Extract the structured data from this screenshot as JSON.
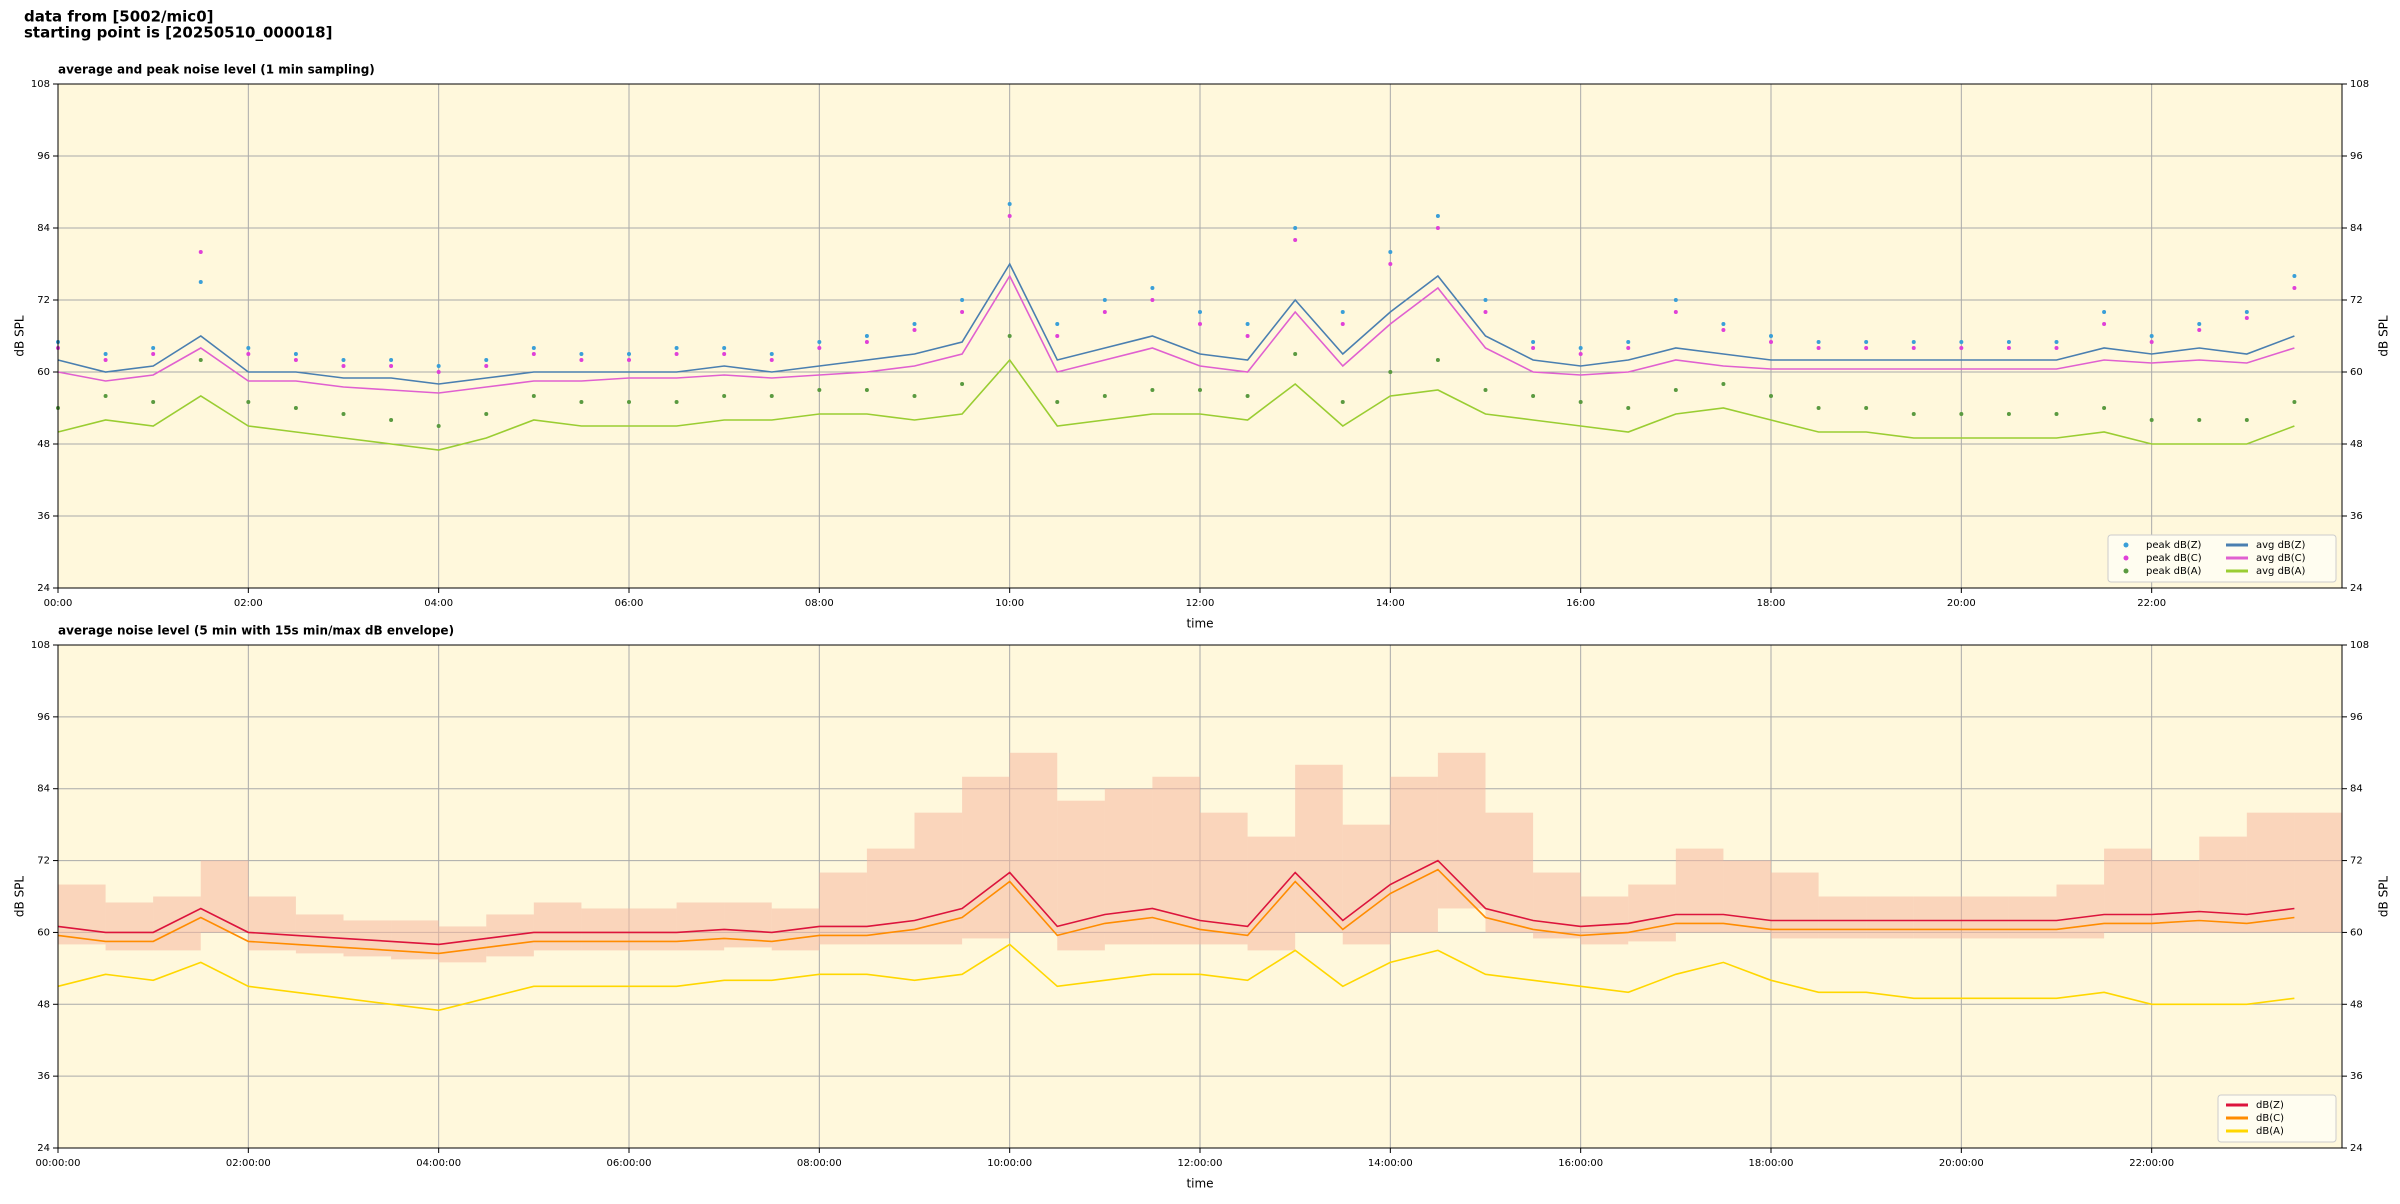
{
  "header": {
    "line1": "data from [5002/mic0]",
    "line2": "starting point is [20250510_000018]"
  },
  "chart_data": [
    {
      "type": "line",
      "title": "average and peak noise level (1 min sampling)",
      "xlabel": "time",
      "ylabel": "dB SPL",
      "xlim": [
        0,
        1440
      ],
      "xticks": [
        {
          "value": 0,
          "label": "00:00"
        },
        {
          "value": 120,
          "label": "02:00"
        },
        {
          "value": 240,
          "label": "04:00"
        },
        {
          "value": 360,
          "label": "06:00"
        },
        {
          "value": 480,
          "label": "08:00"
        },
        {
          "value": 600,
          "label": "10:00"
        },
        {
          "value": 720,
          "label": "12:00"
        },
        {
          "value": 840,
          "label": "14:00"
        },
        {
          "value": 960,
          "label": "16:00"
        },
        {
          "value": 1080,
          "label": "18:00"
        },
        {
          "value": 1200,
          "label": "20:00"
        },
        {
          "value": 1320,
          "label": "22:00"
        }
      ],
      "ylim": [
        24,
        108
      ],
      "yticks": [
        24,
        36,
        48,
        60,
        72,
        84,
        96,
        108
      ],
      "grid": true,
      "background": "#fff8dc",
      "legend": "lower right",
      "x": [
        0,
        30,
        60,
        90,
        120,
        150,
        180,
        210,
        240,
        270,
        300,
        330,
        360,
        390,
        420,
        450,
        480,
        510,
        540,
        570,
        600,
        630,
        660,
        690,
        720,
        750,
        780,
        810,
        840,
        870,
        900,
        930,
        960,
        990,
        1020,
        1050,
        1080,
        1110,
        1140,
        1170,
        1200,
        1230,
        1260,
        1290,
        1320,
        1350,
        1380,
        1410
      ],
      "series": [
        {
          "name": "peak dB(Z)",
          "style": "dots",
          "color": "#3a9fd8",
          "values": [
            65,
            63,
            64,
            75,
            64,
            63,
            62,
            62,
            61,
            62,
            64,
            63,
            63,
            64,
            64,
            63,
            65,
            66,
            68,
            72,
            88,
            68,
            72,
            74,
            70,
            68,
            84,
            70,
            80,
            86,
            72,
            65,
            64,
            65,
            72,
            68,
            66,
            65,
            65,
            65,
            65,
            65,
            65,
            70,
            66,
            68,
            70,
            76
          ]
        },
        {
          "name": "peak dB(C)",
          "style": "dots",
          "color": "#e040d8",
          "values": [
            64,
            62,
            63,
            80,
            63,
            62,
            61,
            61,
            60,
            61,
            63,
            62,
            62,
            63,
            63,
            62,
            64,
            65,
            67,
            70,
            86,
            66,
            70,
            72,
            68,
            66,
            82,
            68,
            78,
            84,
            70,
            64,
            63,
            64,
            70,
            67,
            65,
            64,
            64,
            64,
            64,
            64,
            64,
            68,
            65,
            67,
            69,
            74
          ]
        },
        {
          "name": "peak dB(A)",
          "style": "dots",
          "color": "#5a9a40",
          "values": [
            54,
            56,
            55,
            62,
            55,
            54,
            53,
            52,
            51,
            53,
            56,
            55,
            55,
            55,
            56,
            56,
            57,
            57,
            56,
            58,
            66,
            55,
            56,
            57,
            57,
            56,
            63,
            55,
            60,
            62,
            57,
            56,
            55,
            54,
            57,
            58,
            56,
            54,
            54,
            53,
            53,
            53,
            53,
            54,
            52,
            52,
            52,
            55
          ]
        },
        {
          "name": "avg dB(Z)",
          "style": "line",
          "color": "#4a7fb0",
          "values": [
            62,
            60,
            61,
            66,
            60,
            60,
            59,
            59,
            58,
            59,
            60,
            60,
            60,
            60,
            61,
            60,
            61,
            62,
            63,
            65,
            78,
            62,
            64,
            66,
            63,
            62,
            72,
            63,
            70,
            76,
            66,
            62,
            61,
            62,
            64,
            63,
            62,
            62,
            62,
            62,
            62,
            62,
            62,
            64,
            63,
            64,
            63,
            66
          ]
        },
        {
          "name": "avg dB(C)",
          "style": "line",
          "color": "#e060d0",
          "values": [
            60,
            58.5,
            59.5,
            64,
            58.5,
            58.5,
            57.5,
            57,
            56.5,
            57.5,
            58.5,
            58.5,
            59,
            59,
            59.5,
            59,
            59.5,
            60,
            61,
            63,
            76,
            60,
            62,
            64,
            61,
            60,
            70,
            61,
            68,
            74,
            64,
            60,
            59.5,
            60,
            62,
            61,
            60.5,
            60.5,
            60.5,
            60.5,
            60.5,
            60.5,
            60.5,
            62,
            61.5,
            62,
            61.5,
            64
          ]
        },
        {
          "name": "avg dB(A)",
          "style": "line",
          "color": "#9acd32",
          "values": [
            50,
            52,
            51,
            56,
            51,
            50,
            49,
            48,
            47,
            49,
            52,
            51,
            51,
            51,
            52,
            52,
            53,
            53,
            52,
            53,
            62,
            51,
            52,
            53,
            53,
            52,
            58,
            51,
            56,
            57,
            53,
            52,
            51,
            50,
            53,
            54,
            52,
            50,
            50,
            49,
            49,
            49,
            49,
            50,
            48,
            48,
            48,
            51
          ]
        }
      ]
    },
    {
      "type": "line",
      "title": "average noise level (5 min with 15s min/max dB envelope)",
      "xlabel": "time",
      "ylabel": "dB SPL",
      "xlim": [
        0,
        1440
      ],
      "xticks": [
        {
          "value": 0,
          "label": "00:00:00"
        },
        {
          "value": 120,
          "label": "02:00:00"
        },
        {
          "value": 240,
          "label": "04:00:00"
        },
        {
          "value": 360,
          "label": "06:00:00"
        },
        {
          "value": 480,
          "label": "08:00:00"
        },
        {
          "value": 600,
          "label": "10:00:00"
        },
        {
          "value": 720,
          "label": "12:00:00"
        },
        {
          "value": 840,
          "label": "14:00:00"
        },
        {
          "value": 960,
          "label": "16:00:00"
        },
        {
          "value": 1080,
          "label": "18:00:00"
        },
        {
          "value": 1200,
          "label": "20:00:00"
        },
        {
          "value": 1320,
          "label": "22:00:00"
        }
      ],
      "ylim": [
        24,
        108
      ],
      "yticks": [
        24,
        36,
        48,
        60,
        72,
        84,
        96,
        108
      ],
      "grid": true,
      "background": "#fff8dc",
      "legend": "lower right",
      "x": [
        0,
        30,
        60,
        90,
        120,
        150,
        180,
        210,
        240,
        270,
        300,
        330,
        360,
        390,
        420,
        450,
        480,
        510,
        540,
        570,
        600,
        630,
        660,
        690,
        720,
        750,
        780,
        810,
        840,
        870,
        900,
        930,
        960,
        990,
        1020,
        1050,
        1080,
        1110,
        1140,
        1170,
        1200,
        1230,
        1260,
        1290,
        1320,
        1350,
        1380,
        1410
      ],
      "envelope": {
        "color": "#f5b8a0",
        "low": [
          58,
          57,
          57,
          60,
          57,
          56.5,
          56,
          55.5,
          55,
          56,
          57,
          57,
          57,
          57,
          57.5,
          57,
          58,
          58,
          58,
          59,
          60,
          57,
          58,
          58,
          58,
          57,
          60,
          58,
          60,
          64,
          60,
          59,
          58,
          58.5,
          60,
          60,
          59,
          59,
          59,
          59,
          59,
          59,
          59,
          60,
          60,
          60,
          60,
          60
        ],
        "high": [
          68,
          65,
          66,
          72,
          66,
          63,
          62,
          62,
          61,
          63,
          65,
          64,
          64,
          65,
          65,
          64,
          70,
          74,
          80,
          86,
          90,
          82,
          84,
          86,
          80,
          76,
          88,
          78,
          86,
          90,
          80,
          70,
          66,
          68,
          74,
          72,
          70,
          66,
          66,
          66,
          66,
          66,
          68,
          74,
          72,
          76,
          80,
          80
        ]
      },
      "series": [
        {
          "name": "dB(Z)",
          "style": "line",
          "color": "#dc143c",
          "values": [
            61,
            60,
            60,
            64,
            60,
            59.5,
            59,
            58.5,
            58,
            59,
            60,
            60,
            60,
            60,
            60.5,
            60,
            61,
            61,
            62,
            64,
            70,
            61,
            63,
            64,
            62,
            61,
            70,
            62,
            68,
            72,
            64,
            62,
            61,
            61.5,
            63,
            63,
            62,
            62,
            62,
            62,
            62,
            62,
            62,
            63,
            63,
            63.5,
            63,
            64
          ]
        },
        {
          "name": "dB(C)",
          "style": "line",
          "color": "#ff8c00",
          "values": [
            59.5,
            58.5,
            58.5,
            62.5,
            58.5,
            58,
            57.5,
            57,
            56.5,
            57.5,
            58.5,
            58.5,
            58.5,
            58.5,
            59,
            58.5,
            59.5,
            59.5,
            60.5,
            62.5,
            68.5,
            59.5,
            61.5,
            62.5,
            60.5,
            59.5,
            68.5,
            60.5,
            66.5,
            70.5,
            62.5,
            60.5,
            59.5,
            60,
            61.5,
            61.5,
            60.5,
            60.5,
            60.5,
            60.5,
            60.5,
            60.5,
            60.5,
            61.5,
            61.5,
            62,
            61.5,
            62.5
          ]
        },
        {
          "name": "dB(A)",
          "style": "line",
          "color": "#ffd700",
          "values": [
            51,
            53,
            52,
            55,
            51,
            50,
            49,
            48,
            47,
            49,
            51,
            51,
            51,
            51,
            52,
            52,
            53,
            53,
            52,
            53,
            58,
            51,
            52,
            53,
            53,
            52,
            57,
            51,
            55,
            57,
            53,
            52,
            51,
            50,
            53,
            55,
            52,
            50,
            50,
            49,
            49,
            49,
            49,
            50,
            48,
            48,
            48,
            49
          ]
        }
      ]
    }
  ]
}
